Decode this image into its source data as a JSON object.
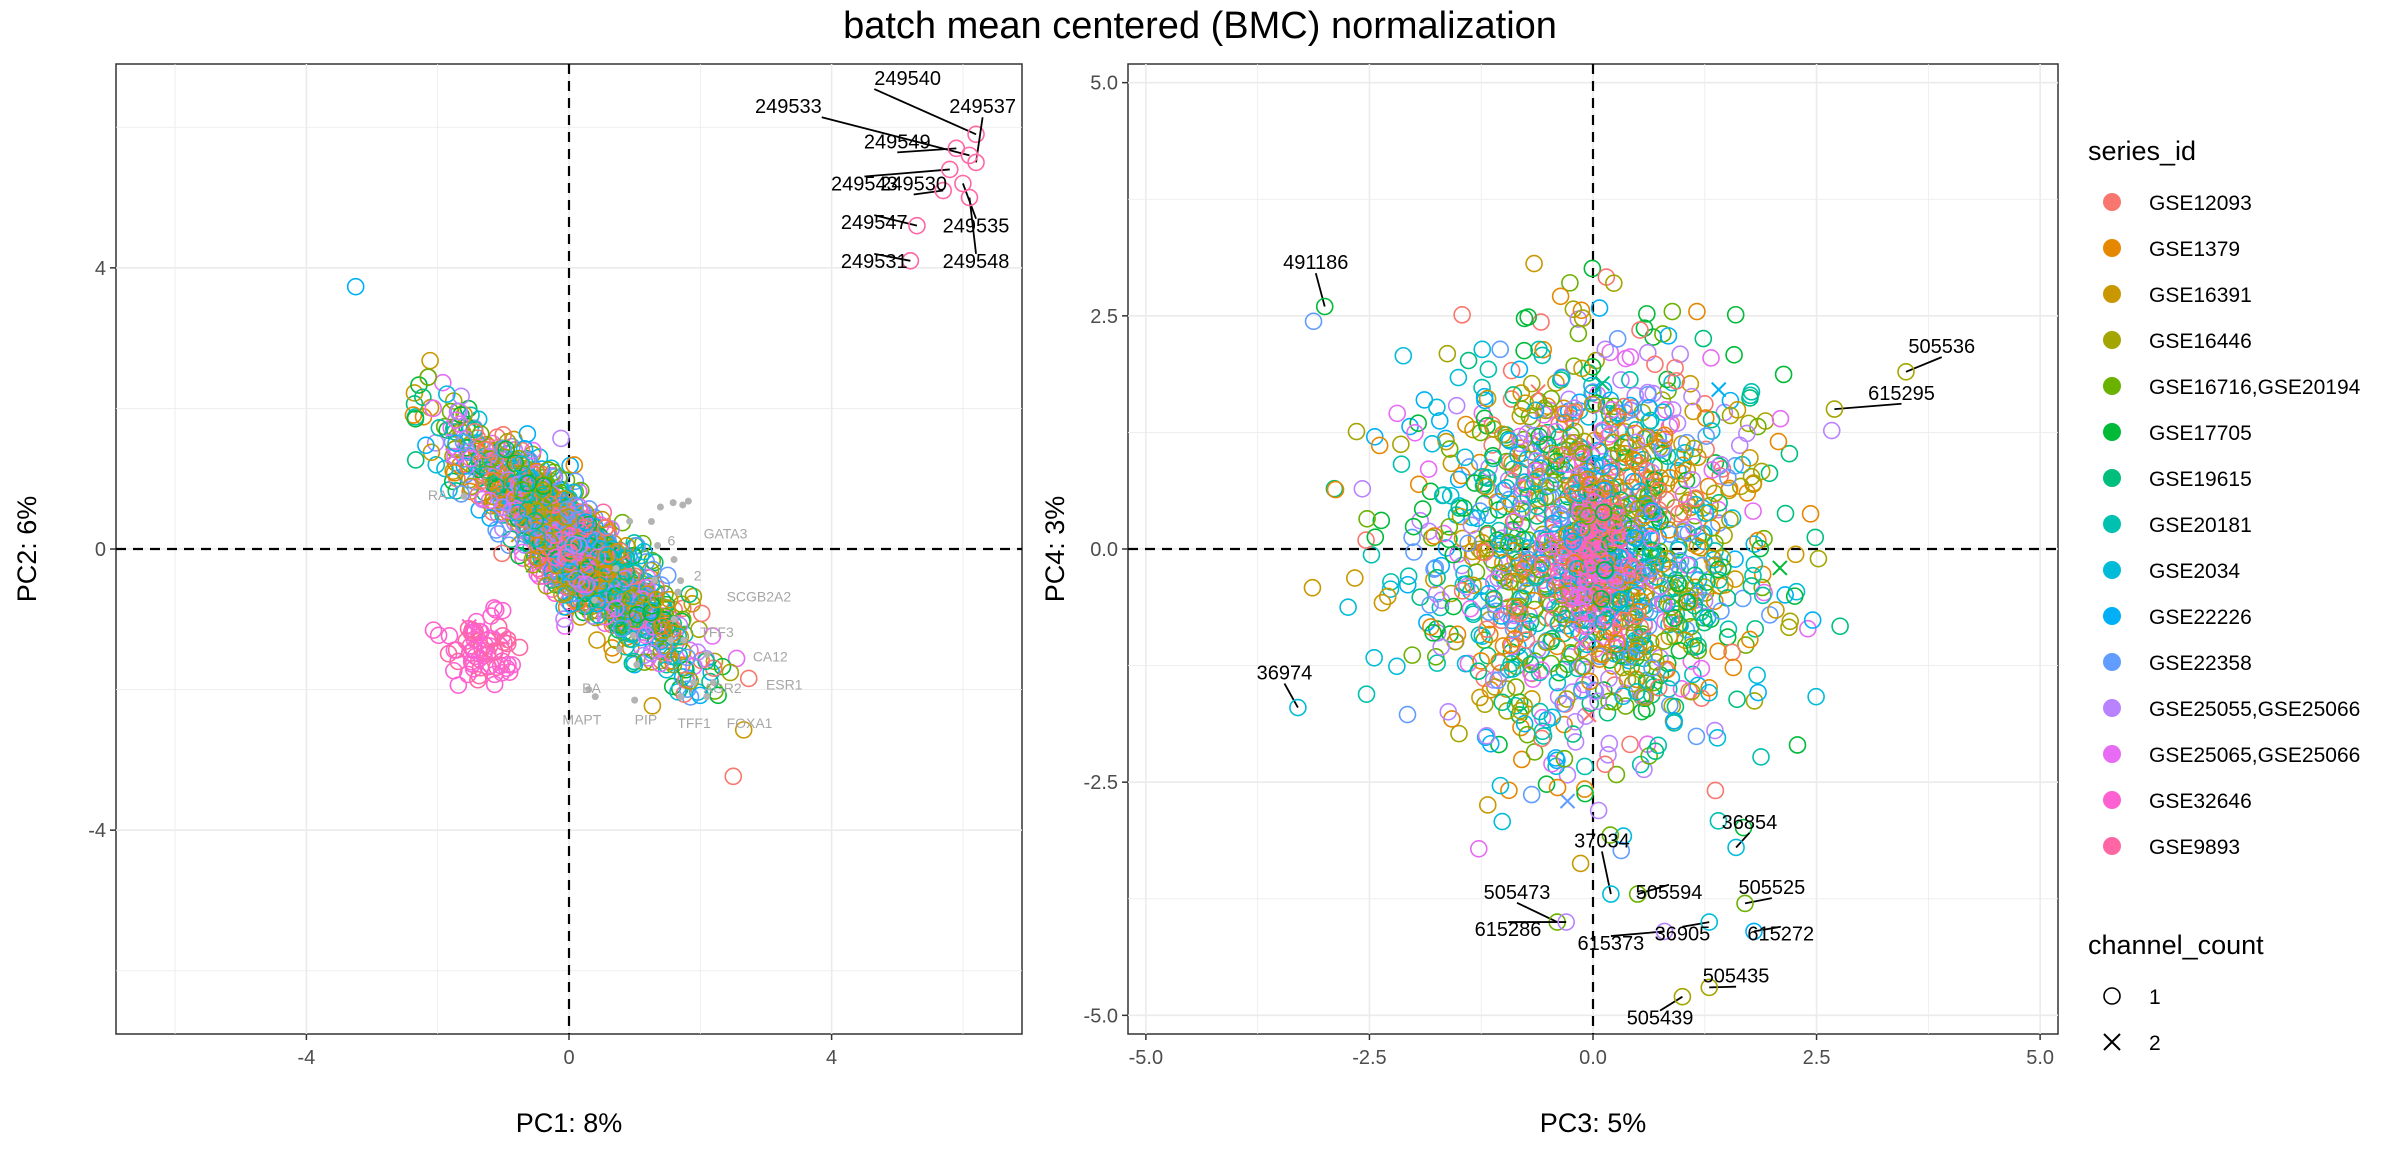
{
  "title": "batch mean centered (BMC) normalization",
  "legend": {
    "series_title": "series_id",
    "series": [
      {
        "name": "GSE12093",
        "color": "#F8766D"
      },
      {
        "name": "GSE1379",
        "color": "#E58700"
      },
      {
        "name": "GSE16391",
        "color": "#C99800"
      },
      {
        "name": "GSE16446",
        "color": "#A3A500"
      },
      {
        "name": "GSE16716,GSE20194",
        "color": "#6BB100"
      },
      {
        "name": "GSE17705",
        "color": "#00BA38"
      },
      {
        "name": "GSE19615",
        "color": "#00BF7D"
      },
      {
        "name": "GSE20181",
        "color": "#00C0AF"
      },
      {
        "name": "GSE2034",
        "color": "#00BCD8"
      },
      {
        "name": "GSE22226",
        "color": "#00B0F6"
      },
      {
        "name": "GSE22358",
        "color": "#619CFF"
      },
      {
        "name": "GSE25055,GSE25066",
        "color": "#B983FF"
      },
      {
        "name": "GSE25065,GSE25066",
        "color": "#E76BF3"
      },
      {
        "name": "GSE32646",
        "color": "#FD61D1"
      },
      {
        "name": "GSE9893",
        "color": "#FF67A4"
      }
    ],
    "shape_title": "channel_count",
    "shapes": [
      {
        "label": "1",
        "shape": "circle"
      },
      {
        "label": "2",
        "shape": "cross"
      }
    ]
  },
  "chart_data": [
    {
      "type": "scatter",
      "xlabel": "PC1: 8%",
      "ylabel": "PC2: 6%",
      "xlim": [
        -6.9,
        6.9
      ],
      "ylim": [
        -6.9,
        6.9
      ],
      "xticks": [
        -4,
        0,
        4
      ],
      "yticks": [
        -4,
        0,
        4
      ],
      "xtick_labels": [
        "-4",
        "0",
        "4"
      ],
      "ytick_labels": [
        "-4",
        "0",
        "4"
      ],
      "grid": true,
      "reference_lines": {
        "x": 0,
        "y": 0,
        "style": "dashed"
      },
      "cluster": {
        "description": "several thousand samples, elongated from upper-left to lower-right",
        "center": [
          0,
          0
        ],
        "extent_x": [
          -3.2,
          1.9
        ],
        "extent_y": [
          -2.5,
          2.6
        ]
      },
      "labeled_points": [
        {
          "label": "249540",
          "x": 6.2,
          "y": 5.9,
          "series": "GSE9893"
        },
        {
          "label": "249537",
          "x": 6.2,
          "y": 5.5,
          "series": "GSE9893"
        },
        {
          "label": "249533",
          "x": 6.1,
          "y": 5.6,
          "series": "GSE9893"
        },
        {
          "label": "249549",
          "x": 5.9,
          "y": 5.7,
          "series": "GSE9893"
        },
        {
          "label": "249543",
          "x": 5.8,
          "y": 5.4,
          "series": "GSE9893"
        },
        {
          "label": "249530",
          "x": 5.7,
          "y": 5.1,
          "series": "GSE9893"
        },
        {
          "label": "249547",
          "x": 5.3,
          "y": 4.6,
          "series": "GSE9893"
        },
        {
          "label": "249535",
          "x": 6.0,
          "y": 5.2,
          "series": "GSE9893"
        },
        {
          "label": "249531",
          "x": 5.2,
          "y": 4.1,
          "series": "GSE9893"
        },
        {
          "label": "249548",
          "x": 6.1,
          "y": 5.0,
          "series": "GSE9893"
        }
      ],
      "gene_labels": [
        "GATA3",
        "SCGB2A2",
        "TFF3",
        "CA12",
        "ESR1",
        "AGR2",
        "FOXA1",
        "TFF1",
        "PIP",
        "MAPT",
        "RA",
        "6",
        "2",
        "BA"
      ]
    },
    {
      "type": "scatter",
      "xlabel": "PC3: 5%",
      "ylabel": "PC4: 3%",
      "xlim": [
        -5.2,
        5.2
      ],
      "ylim": [
        -5.2,
        5.2
      ],
      "xticks": [
        -5,
        -2.5,
        0,
        2.5,
        5
      ],
      "yticks": [
        -5,
        -2.5,
        0,
        2.5,
        5
      ],
      "xtick_labels": [
        "-5.0",
        "-2.5",
        "0.0",
        "2.5",
        "5.0"
      ],
      "ytick_labels": [
        "-5.0",
        "-2.5",
        "0.0",
        "2.5",
        "5.0"
      ],
      "grid": true,
      "reference_lines": {
        "x": 0,
        "y": 0,
        "style": "dashed"
      },
      "cluster": {
        "description": "several thousand samples in a roughly circular cloud",
        "center": [
          0,
          0
        ],
        "extent_x": [
          -3.5,
          3.7
        ],
        "extent_y": [
          -4.8,
          3.6
        ]
      },
      "labeled_points": [
        {
          "label": "491186",
          "x": -3.0,
          "y": 2.6,
          "series": "GSE17705"
        },
        {
          "label": "505536",
          "x": 3.5,
          "y": 1.9,
          "series": "GSE16446"
        },
        {
          "label": "615295",
          "x": 2.7,
          "y": 1.5,
          "series": "GSE16446"
        },
        {
          "label": "36974",
          "x": -3.3,
          "y": -1.7,
          "series": "GSE2034"
        },
        {
          "label": "37034",
          "x": 0.2,
          "y": -3.7,
          "series": "GSE2034"
        },
        {
          "label": "36854",
          "x": 1.6,
          "y": -3.2,
          "series": "GSE2034"
        },
        {
          "label": "505473",
          "x": -0.4,
          "y": -4.0,
          "series": "GSE16716,GSE20194"
        },
        {
          "label": "505594",
          "x": 0.5,
          "y": -3.7,
          "series": "GSE16716,GSE20194"
        },
        {
          "label": "505525",
          "x": 1.7,
          "y": -3.8,
          "series": "GSE16716,GSE20194"
        },
        {
          "label": "615286",
          "x": -0.3,
          "y": -4.0,
          "series": "GSE25055,GSE25066"
        },
        {
          "label": "615373",
          "x": 0.8,
          "y": -4.1,
          "series": "GSE25055,GSE25066"
        },
        {
          "label": "36905",
          "x": 1.3,
          "y": -4.0,
          "series": "GSE2034"
        },
        {
          "label": "615272",
          "x": 1.8,
          "y": -4.1,
          "series": "GSE22226"
        },
        {
          "label": "505435",
          "x": 1.3,
          "y": -4.7,
          "series": "GSE16446"
        },
        {
          "label": "505439",
          "x": 1.0,
          "y": -4.8,
          "series": "GSE16446"
        }
      ]
    }
  ]
}
